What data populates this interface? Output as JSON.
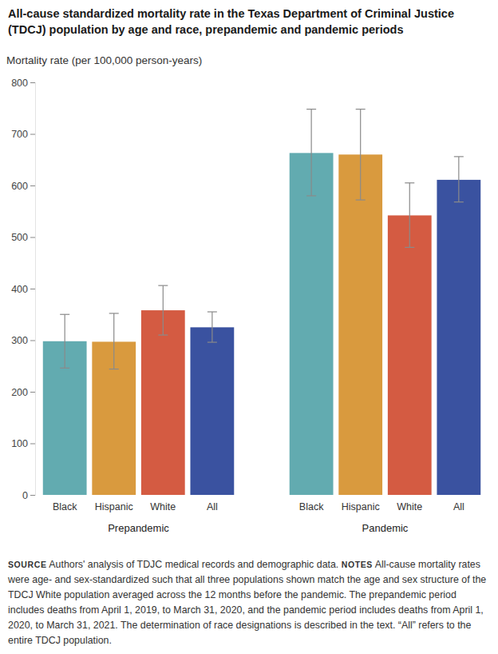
{
  "chart_data": {
    "type": "bar",
    "title": "All-cause standardized mortality rate in the Texas Department of Criminal Justice (TDCJ) population by age and race, prepandemic and pandemic periods",
    "y_label": "Mortality rate (per 100,000 person-years)",
    "categories": [
      "Prepandemic",
      "Pandemic"
    ],
    "series": [
      {
        "name": "Black",
        "color": "#62abb0",
        "values": [
          298,
          663
        ],
        "error_low": [
          246,
          580
        ],
        "error_high": [
          350,
          748
        ]
      },
      {
        "name": "Hispanic",
        "color": "#d99a3e",
        "values": [
          297,
          660
        ],
        "error_low": [
          244,
          572
        ],
        "error_high": [
          352,
          748
        ]
      },
      {
        "name": "White",
        "color": "#d45b42",
        "values": [
          358,
          542
        ],
        "error_low": [
          310,
          480
        ],
        "error_high": [
          406,
          605
        ]
      },
      {
        "name": "All",
        "color": "#3a52a0",
        "values": [
          325,
          611
        ],
        "error_low": [
          296,
          568
        ],
        "error_high": [
          355,
          656
        ]
      }
    ],
    "ylim": [
      0,
      800
    ],
    "yticks": [
      0,
      100,
      200,
      300,
      400,
      500,
      600,
      700,
      800
    ],
    "grid": false,
    "source": {
      "label": "SOURCE",
      "text": "Authors' analysis of TDJC medical records and demographic data."
    },
    "notes": {
      "label": "NOTES",
      "text": "All-cause mortality rates were age- and sex-standardized such that all three populations shown match the age and sex structure of the TDCJ White population averaged across the 12 months before the pandemic. The prepandemic period includes deaths from April 1, 2019, to March 31, 2020, and the pandemic period includes deaths from April 1, 2020, to March 31, 2021. The determination of race designations is described in the text. “All” refers to the entire TDCJ population."
    }
  }
}
